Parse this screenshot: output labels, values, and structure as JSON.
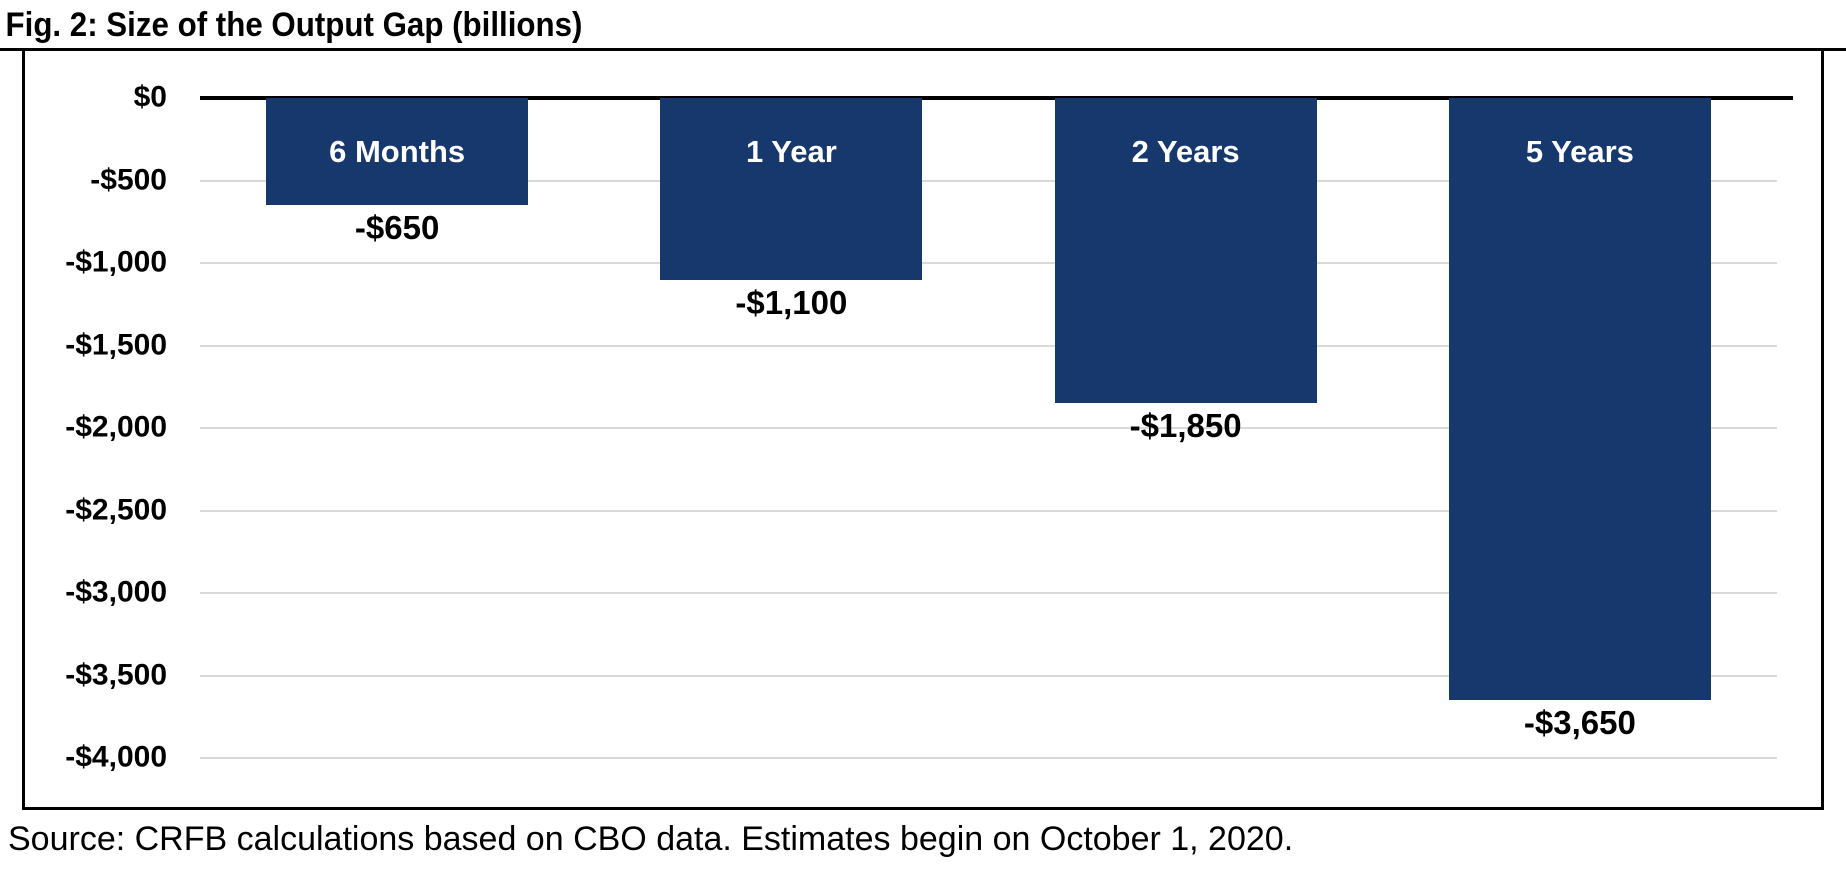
{
  "page": {
    "title": "Fig. 2: Size of the Output Gap (billions)",
    "source_note": "Source: CRFB calculations based on CBO data. Estimates begin on October 1, 2020."
  },
  "colors": {
    "bar_fill": "#17386d",
    "bar_label_text": "#ffffff",
    "value_label_text": "#000000",
    "gridline": "#d9d9d9",
    "zero_axis_line": "#000000",
    "frame_border": "#000000",
    "background": "#ffffff"
  },
  "chart_data": {
    "type": "bar",
    "title": "Fig. 2: Size of the Output Gap (billions)",
    "categories": [
      "6 Months",
      "1 Year",
      "2 Years",
      "5 Years"
    ],
    "values": [
      -650,
      -1100,
      -1850,
      -3650
    ],
    "value_labels": [
      "-$650",
      "-$1,100",
      "-$1,850",
      "-$3,650"
    ],
    "xlabel": "",
    "ylabel": "",
    "ylim": [
      -4000,
      0
    ],
    "ytick_step": 500,
    "ytick_labels": [
      "$0",
      "-$500",
      "-$1,000",
      "-$1,500",
      "-$2,000",
      "-$2,500",
      "-$3,000",
      "-$3,500",
      "-$4,000"
    ],
    "grid": true,
    "legend": false,
    "category_labels_inside_bars": true,
    "source_note": "Source: CRFB calculations based on CBO data. Estimates begin on October 1, 2020."
  }
}
